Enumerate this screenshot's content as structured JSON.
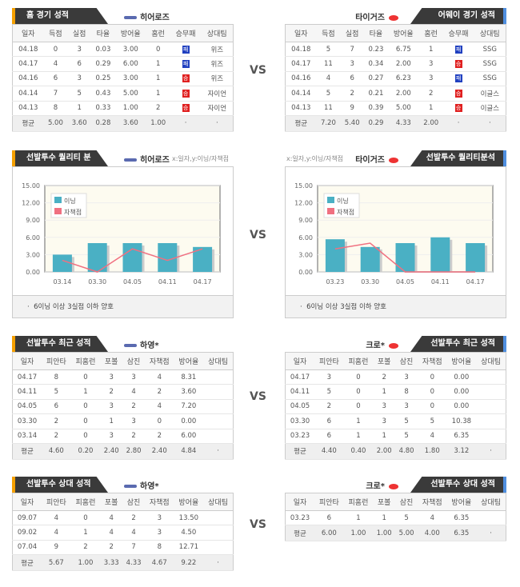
{
  "vs": "VS",
  "colors": {
    "bar": "#4ab0c4",
    "line": "#f07080",
    "win": "#e02020",
    "loss": "#2040c0",
    "accent_left": "#f5a000",
    "accent_right": "#4f8fe0"
  },
  "team_headers": [
    "일자",
    "득점",
    "실점",
    "타율",
    "방어율",
    "홈런",
    "승무패",
    "상대팀"
  ],
  "pitcher_headers": [
    "일자",
    "피안타",
    "피홈런",
    "포볼",
    "삼진",
    "자책점",
    "방어율",
    "상대팀"
  ],
  "home": {
    "title": "홈 경기 성적",
    "team": "히어로즈",
    "rows": [
      [
        "04.18",
        "0",
        "3",
        "0.03",
        "3.00",
        "0",
        "패",
        "위즈"
      ],
      [
        "04.17",
        "4",
        "6",
        "0.29",
        "6.00",
        "1",
        "패",
        "위즈"
      ],
      [
        "04.16",
        "6",
        "3",
        "0.25",
        "3.00",
        "1",
        "승",
        "위즈"
      ],
      [
        "04.14",
        "7",
        "5",
        "0.43",
        "5.00",
        "1",
        "승",
        "자이언"
      ],
      [
        "04.13",
        "8",
        "1",
        "0.33",
        "1.00",
        "2",
        "승",
        "자이언"
      ]
    ],
    "avg": [
      "평균",
      "5.00",
      "3.60",
      "0.28",
      "3.60",
      "1.00",
      "·",
      "·"
    ]
  },
  "away": {
    "title": "어웨이 경기 성적",
    "team": "타이거즈",
    "rows": [
      [
        "04.18",
        "5",
        "7",
        "0.23",
        "6.75",
        "1",
        "패",
        "SSG"
      ],
      [
        "04.17",
        "11",
        "3",
        "0.34",
        "2.00",
        "3",
        "승",
        "SSG"
      ],
      [
        "04.16",
        "4",
        "6",
        "0.27",
        "6.23",
        "3",
        "패",
        "SSG"
      ],
      [
        "04.14",
        "5",
        "2",
        "0.21",
        "2.00",
        "2",
        "승",
        "이글스"
      ],
      [
        "04.13",
        "11",
        "9",
        "0.39",
        "5.00",
        "1",
        "승",
        "이글스"
      ]
    ],
    "avg": [
      "평균",
      "7.20",
      "5.40",
      "0.29",
      "4.33",
      "2.00",
      "·",
      "·"
    ]
  },
  "quality_left": {
    "title": "선발투수 퀄리티 분석",
    "team": "히어로즈",
    "note": "x:일자,y:이닝/자책점",
    "footer": "6이닝 이상 3실점 이하 양호"
  },
  "quality_right": {
    "title": "선발투수 퀄리티분석",
    "team": "타이거즈",
    "note": "x:일자,y:이닝/자책점",
    "footer": "6이닝 이상 3실점 이하 양호"
  },
  "chart_data": [
    {
      "type": "bar",
      "categories": [
        "03.14",
        "03.30",
        "04.05",
        "04.11",
        "04.17"
      ],
      "ylim": [
        0,
        15
      ],
      "yticks": [
        "0.00",
        "3.00",
        "6.00",
        "9.00",
        "12.00",
        "15.00"
      ],
      "legend_position": "top-left",
      "grid": true,
      "series": [
        {
          "name": "이닝",
          "type": "bar",
          "values": [
            3,
            5,
            5,
            5,
            4.33
          ]
        },
        {
          "name": "자책점",
          "type": "line",
          "values": [
            2,
            0,
            4,
            2,
            4
          ]
        }
      ]
    },
    {
      "type": "bar",
      "categories": [
        "03.23",
        "03.30",
        "04.05",
        "04.11",
        "04.17"
      ],
      "ylim": [
        0,
        15
      ],
      "yticks": [
        "0.00",
        "3.00",
        "6.00",
        "9.00",
        "12.00",
        "15.00"
      ],
      "legend_position": "top-left",
      "grid": true,
      "series": [
        {
          "name": "이닝",
          "type": "bar",
          "values": [
            5.67,
            4.33,
            5,
            6,
            5
          ]
        },
        {
          "name": "자책점",
          "type": "line",
          "values": [
            4,
            5,
            0,
            0,
            0
          ]
        }
      ]
    }
  ],
  "recent_left": {
    "title": "선발투수 최근 성적",
    "team": "하영*",
    "rows": [
      [
        "04.17",
        "8",
        "0",
        "3",
        "3",
        "4",
        "8.31",
        ""
      ],
      [
        "04.11",
        "5",
        "1",
        "2",
        "4",
        "2",
        "3.60",
        ""
      ],
      [
        "04.05",
        "6",
        "0",
        "3",
        "2",
        "4",
        "7.20",
        ""
      ],
      [
        "03.30",
        "2",
        "0",
        "1",
        "3",
        "0",
        "0.00",
        ""
      ],
      [
        "03.14",
        "2",
        "0",
        "3",
        "2",
        "2",
        "6.00",
        ""
      ]
    ],
    "avg": [
      "평균",
      "4.60",
      "0.20",
      "2.40",
      "2.80",
      "2.40",
      "4.84",
      "·"
    ]
  },
  "recent_right": {
    "title": "선발투수 최근 성적",
    "team": "크로*",
    "rows": [
      [
        "04.17",
        "3",
        "0",
        "2",
        "3",
        "0",
        "0.00",
        ""
      ],
      [
        "04.11",
        "5",
        "0",
        "1",
        "8",
        "0",
        "0.00",
        ""
      ],
      [
        "04.05",
        "2",
        "0",
        "3",
        "3",
        "0",
        "0.00",
        ""
      ],
      [
        "03.30",
        "6",
        "1",
        "3",
        "5",
        "5",
        "10.38",
        ""
      ],
      [
        "03.23",
        "6",
        "1",
        "1",
        "5",
        "4",
        "6.35",
        ""
      ]
    ],
    "avg": [
      "평균",
      "4.40",
      "0.40",
      "2.00",
      "4.80",
      "1.80",
      "3.12",
      "·"
    ]
  },
  "vs_left": {
    "title": "선발투수 상대 성적",
    "team": "하영*",
    "rows": [
      [
        "09.07",
        "4",
        "0",
        "4",
        "2",
        "3",
        "13.50",
        ""
      ],
      [
        "09.02",
        "4",
        "1",
        "4",
        "4",
        "3",
        "4.50",
        ""
      ],
      [
        "07.04",
        "9",
        "2",
        "2",
        "7",
        "8",
        "12.71",
        ""
      ]
    ],
    "avg": [
      "평균",
      "5.67",
      "1.00",
      "3.33",
      "4.33",
      "4.67",
      "9.22",
      "·"
    ]
  },
  "vs_right": {
    "title": "선발투수 상대 성적",
    "team": "크로*",
    "rows": [
      [
        "03.23",
        "6",
        "1",
        "1",
        "5",
        "4",
        "6.35",
        ""
      ]
    ],
    "avg": [
      "평균",
      "6.00",
      "1.00",
      "1.00",
      "5.00",
      "4.00",
      "6.35",
      "·"
    ]
  }
}
